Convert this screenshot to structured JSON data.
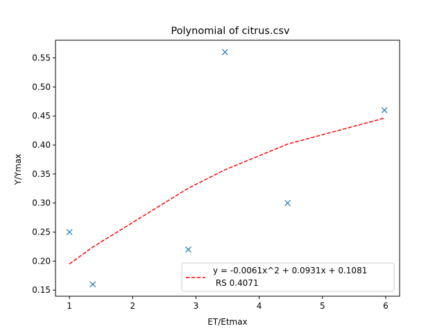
{
  "chart_data": {
    "type": "scatter",
    "title": "Polynomial of citrus.csv",
    "xlabel": "ET/Etmax",
    "ylabel": "Y/Ymax",
    "xlim": [
      0.78,
      6.22
    ],
    "ylim": [
      0.1395,
      0.5805
    ],
    "xticks": [
      1,
      2,
      3,
      4,
      5,
      6
    ],
    "yticks": [
      0.15,
      0.2,
      0.25,
      0.3,
      0.35,
      0.4,
      0.45,
      0.5,
      0.55
    ],
    "xtick_labels": [
      "1",
      "2",
      "3",
      "4",
      "5",
      "6"
    ],
    "ytick_labels": [
      "0.15",
      "0.20",
      "0.25",
      "0.30",
      "0.35",
      "0.40",
      "0.45",
      "0.50",
      "0.55"
    ],
    "grid": false,
    "legend_position": "lower-right",
    "series": [
      {
        "kind": "scatter",
        "marker": "x",
        "color": "#1f77b4",
        "x": [
          1.0,
          1.37,
          2.88,
          3.46,
          4.45,
          5.98
        ],
        "y": [
          0.25,
          0.16,
          0.22,
          0.56,
          0.3,
          0.46
        ]
      },
      {
        "kind": "line",
        "style": "dashed",
        "color": "#ff0000",
        "name_line1": "y = -0.0061x^2 + 0.0931x + 0.1081",
        "name_line2": " RS 0.4071",
        "x": [
          1.0,
          1.37,
          2.88,
          3.46,
          4.45,
          5.98
        ],
        "y": [
          0.1951,
          0.2242,
          0.3256,
          0.3573,
          0.4016,
          0.4463
        ]
      }
    ]
  }
}
